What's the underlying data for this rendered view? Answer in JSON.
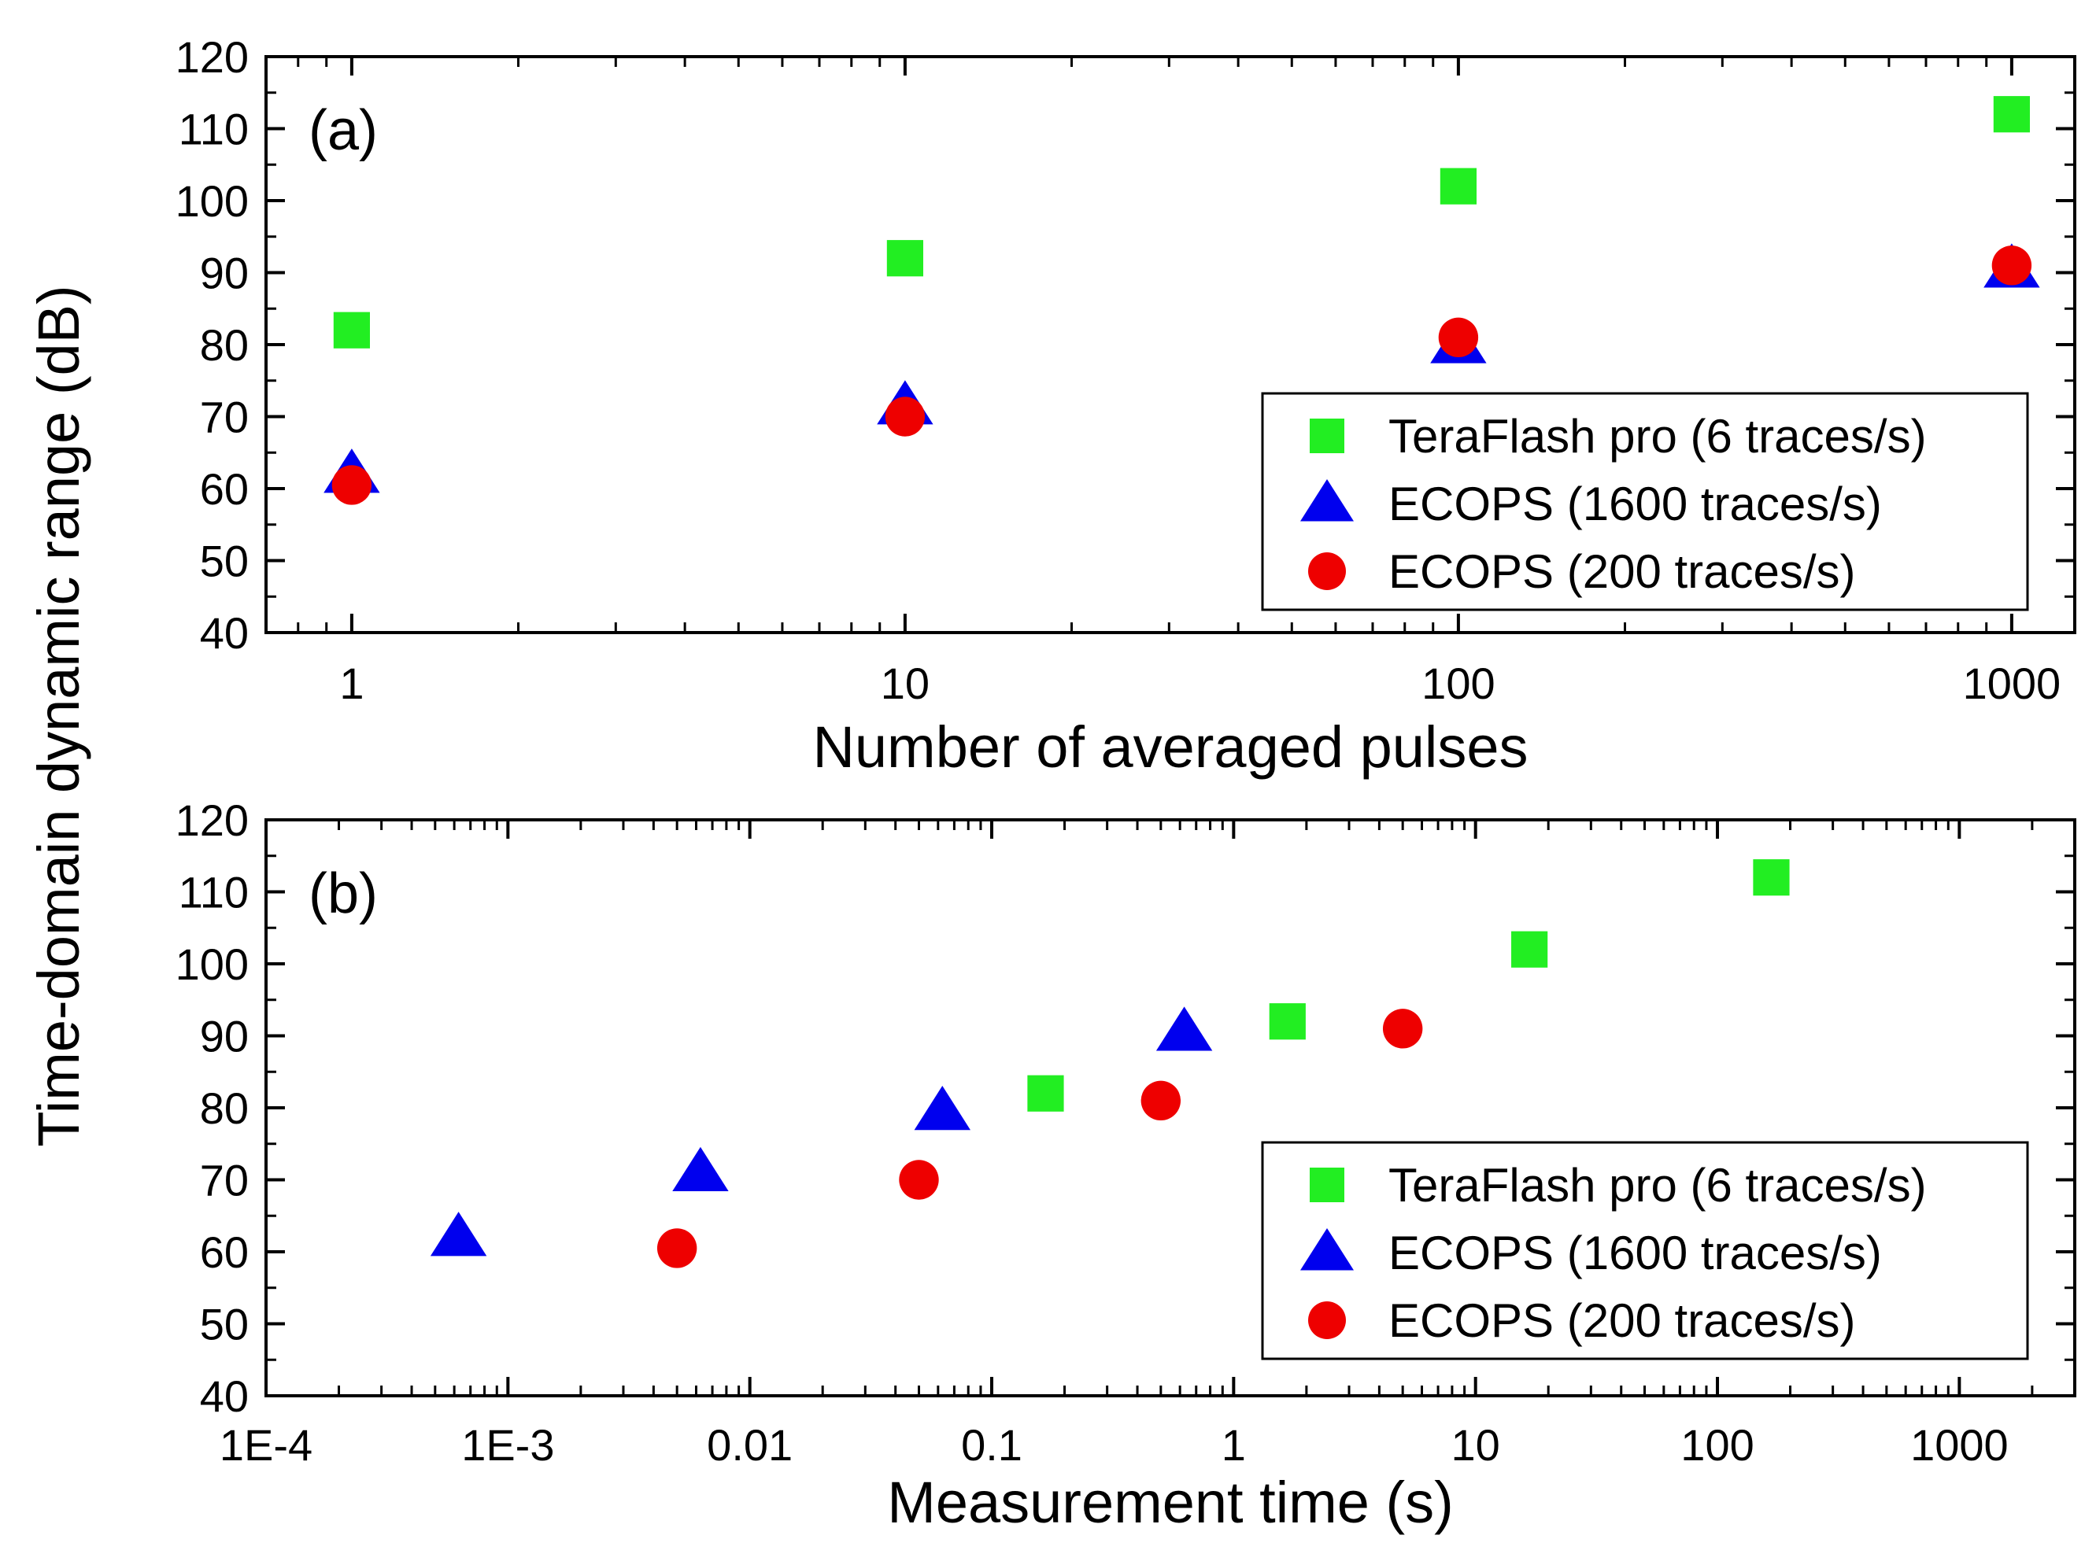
{
  "ylabel": "Time-domain dynamic range (dB)",
  "colors": {
    "teraflash": "#22ee22",
    "ecops1600": "#0000ee",
    "ecops200": "#ee0000"
  },
  "chart_data": [
    {
      "type": "scatter",
      "panel_label": "(a)",
      "xscale": "log",
      "xlabel": "Number of averaged pulses",
      "xlim": [
        0.7,
        1300
      ],
      "ylim": [
        40,
        120
      ],
      "yticks": [
        40,
        50,
        60,
        70,
        80,
        90,
        100,
        110,
        120
      ],
      "xticks": [
        1,
        10,
        100,
        1000
      ],
      "xtick_labels": [
        "1",
        "10",
        "100",
        "1000"
      ],
      "legend_position": "lower-right",
      "series": [
        {
          "name": "TeraFlash pro (6 traces/s)",
          "marker": "square",
          "color_key": "teraflash",
          "x": [
            1,
            10,
            100,
            1000
          ],
          "y": [
            82,
            92,
            102,
            112
          ]
        },
        {
          "name": "ECOPS (1600 traces/s)",
          "marker": "triangle",
          "color_key": "ecops1600",
          "x": [
            1,
            10,
            100,
            1000
          ],
          "y": [
            62,
            71.5,
            80,
            90.5
          ]
        },
        {
          "name": "ECOPS (200 traces/s)",
          "marker": "circle",
          "color_key": "ecops200",
          "x": [
            1,
            10,
            100,
            1000
          ],
          "y": [
            60.5,
            70,
            81,
            91
          ]
        }
      ]
    },
    {
      "type": "scatter",
      "panel_label": "(b)",
      "xscale": "log",
      "xlabel": "Measurement time (s)",
      "xlim": [
        0.0001,
        3000
      ],
      "ylim": [
        40,
        120
      ],
      "yticks": [
        40,
        50,
        60,
        70,
        80,
        90,
        100,
        110,
        120
      ],
      "xticks": [
        0.0001,
        0.001,
        0.01,
        0.1,
        1,
        10,
        100,
        1000
      ],
      "xtick_labels": [
        "1E-4",
        "1E-3",
        "0.01",
        "0.1",
        "1",
        "10",
        "100",
        "1000"
      ],
      "legend_position": "lower-right",
      "series": [
        {
          "name": "TeraFlash pro (6 traces/s)",
          "marker": "square",
          "color_key": "teraflash",
          "x": [
            0.167,
            1.67,
            16.7,
            167
          ],
          "y": [
            82,
            92,
            102,
            112
          ]
        },
        {
          "name": "ECOPS (1600 traces/s)",
          "marker": "triangle",
          "color_key": "ecops1600",
          "x": [
            0.000625,
            0.00625,
            0.0625,
            0.625
          ],
          "y": [
            62,
            71,
            79.5,
            90.5
          ]
        },
        {
          "name": "ECOPS (200 traces/s)",
          "marker": "circle",
          "color_key": "ecops200",
          "x": [
            0.005,
            0.05,
            0.5,
            5
          ],
          "y": [
            60.5,
            70,
            81,
            91
          ]
        }
      ]
    }
  ]
}
